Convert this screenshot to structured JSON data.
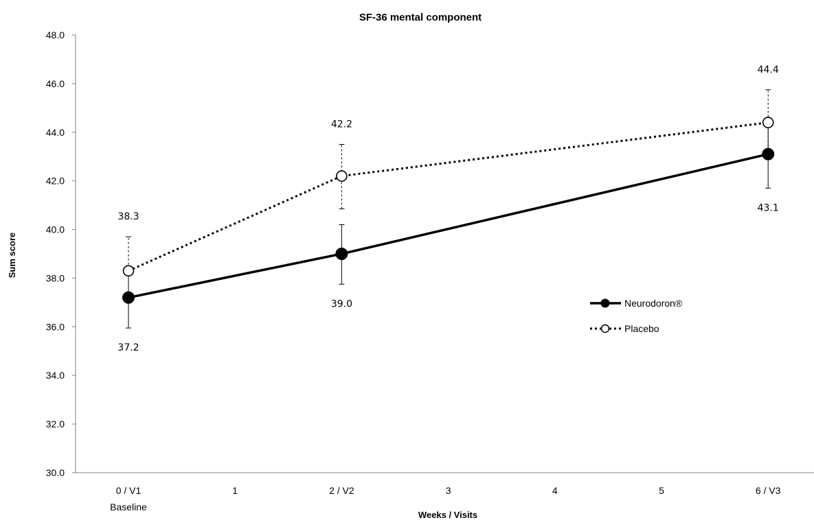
{
  "chart_data": {
    "type": "line",
    "title": "SF-36 mental component",
    "xlabel": "Weeks / Visits",
    "ylabel": "Sum score",
    "x": [
      0,
      1,
      2,
      3,
      4,
      5,
      6
    ],
    "x_tick_labels": [
      "0 / V1",
      "1",
      "2 / V2",
      "3",
      "4",
      "5",
      "6 / V3"
    ],
    "x_tick_sublabels": [
      "Baseline",
      "",
      "",
      "",
      "",
      "",
      ""
    ],
    "ylim": [
      30,
      48
    ],
    "y_ticks": [
      "30.0",
      "32.0",
      "34.0",
      "36.0",
      "38.0",
      "40.0",
      "42.0",
      "44.0",
      "46.0",
      "48.0"
    ],
    "grid": false,
    "legend_position": "right",
    "series": [
      {
        "name": "Neurodoron®",
        "style": "solid",
        "marker": "filled-circle",
        "color": "#000000",
        "points": [
          {
            "x": 0,
            "y": 37.2,
            "label": "37.2",
            "err_low": 35.95,
            "err_high": 38.2
          },
          {
            "x": 2,
            "y": 39.0,
            "label": "39.0",
            "err_low": 37.75,
            "err_high": 40.2
          },
          {
            "x": 6,
            "y": 43.1,
            "label": "43.1",
            "err_low": 41.7,
            "err_high": 44.4
          }
        ]
      },
      {
        "name": "Placebo",
        "style": "dotted",
        "marker": "open-circle",
        "color": "#000000",
        "points": [
          {
            "x": 0,
            "y": 38.3,
            "label": "38.3",
            "err_low": 37.2,
            "err_high": 39.7
          },
          {
            "x": 2,
            "y": 42.2,
            "label": "42.2",
            "err_low": 40.85,
            "err_high": 43.5
          },
          {
            "x": 6,
            "y": 44.4,
            "label": "44.4",
            "err_low": 43.1,
            "err_high": 45.75
          }
        ]
      }
    ]
  }
}
